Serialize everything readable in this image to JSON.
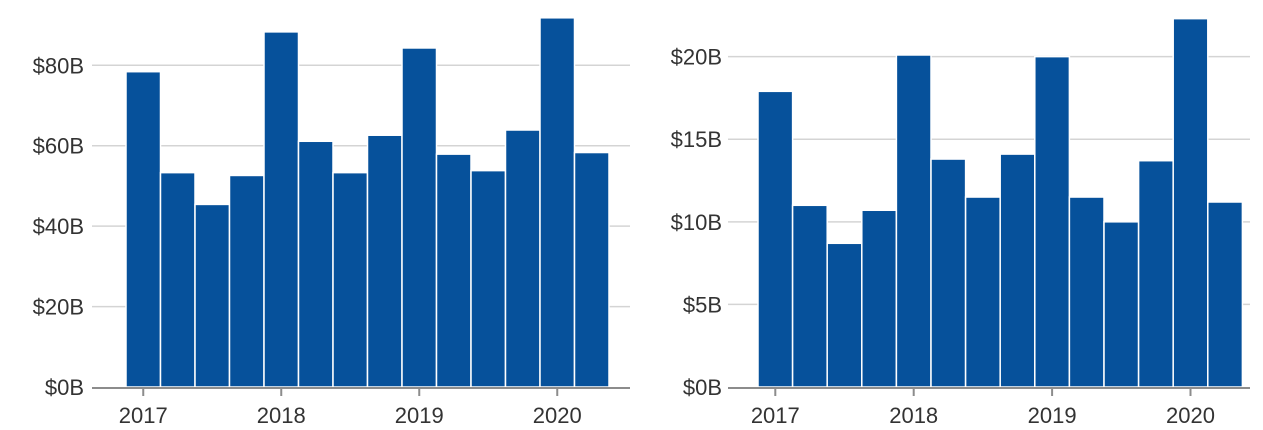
{
  "colors": {
    "bar": "#06519b",
    "grid": "#d4d4d4",
    "axis": "#8c8c8c",
    "text": "#333333"
  },
  "chart_data": [
    {
      "type": "bar",
      "title": "",
      "xlabel": "",
      "ylabel": "",
      "ylim": [
        0,
        92
      ],
      "y_ticks": [
        0,
        20,
        40,
        60,
        80
      ],
      "y_tick_labels": [
        "$0B",
        "$20B",
        "$40B",
        "$60B",
        "$80B"
      ],
      "x_tick_labels": [
        "2017",
        "2018",
        "2019",
        "2020"
      ],
      "categories": [
        "Q1 2017",
        "Q2 2017",
        "Q3 2017",
        "Q4 2017",
        "Q1 2018",
        "Q2 2018",
        "Q3 2018",
        "Q4 2018",
        "Q1 2019",
        "Q2 2019",
        "Q3 2019",
        "Q4 2019",
        "Q1 2020",
        "Q2 2020"
      ],
      "values": [
        78.4,
        53.3,
        45.4,
        52.6,
        88.3,
        61.1,
        53.3,
        62.6,
        84.3,
        57.9,
        53.8,
        63.9,
        91.8,
        58.3
      ],
      "grid": true,
      "legend": "none"
    },
    {
      "type": "bar",
      "title": "",
      "xlabel": "",
      "ylabel": "",
      "ylim": [
        0,
        22.4
      ],
      "y_ticks": [
        0,
        5,
        10,
        15,
        20
      ],
      "y_tick_labels": [
        "$0B",
        "$5B",
        "$10B",
        "$15B",
        "$20B"
      ],
      "x_tick_labels": [
        "2017",
        "2018",
        "2019",
        "2020"
      ],
      "categories": [
        "Q1 2017",
        "Q2 2017",
        "Q3 2017",
        "Q4 2017",
        "Q1 2018",
        "Q2 2018",
        "Q3 2018",
        "Q4 2018",
        "Q1 2019",
        "Q2 2019",
        "Q3 2019",
        "Q4 2019",
        "Q1 2020",
        "Q2 2020"
      ],
      "values": [
        17.9,
        11.0,
        8.7,
        10.7,
        20.1,
        13.8,
        11.5,
        14.1,
        20.0,
        11.5,
        10.0,
        13.7,
        22.3,
        11.2
      ],
      "grid": true,
      "legend": "none"
    }
  ]
}
